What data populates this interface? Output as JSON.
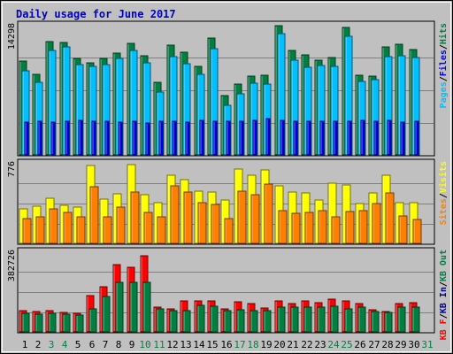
{
  "chart_data": {
    "type": "bar",
    "title": "Daily usage for June 2017",
    "categories": [
      "1",
      "2",
      "3",
      "4",
      "5",
      "6",
      "7",
      "8",
      "9",
      "10",
      "11",
      "12",
      "13",
      "14",
      "15",
      "16",
      "17",
      "18",
      "19",
      "20",
      "21",
      "22",
      "23",
      "24",
      "25",
      "26",
      "27",
      "28",
      "29",
      "30",
      "31"
    ],
    "weekend_days": [
      "3",
      "4",
      "10",
      "11",
      "17",
      "18",
      "24",
      "25",
      "31"
    ],
    "colors": {
      "background": "#c0c0c0",
      "title": "#0000c8",
      "pages": "#00c0ff",
      "files": "#0000ff",
      "hits": "#008040",
      "sites": "#ff8000",
      "visits": "#ffff00",
      "kb_in": "#0000a0",
      "kb_out": "#008040",
      "kb_f": "#ff0000",
      "weekday_label": "#000000",
      "weekend_label": "#008040"
    },
    "panels": [
      {
        "id": "hits-files-pages",
        "max_label": "14298",
        "ymax": 14298,
        "legend": [
          {
            "text": "Pages",
            "color": "#00c0ff"
          },
          {
            "text": "/",
            "color": "#000000"
          },
          {
            "text": "Files",
            "color": "#0000ff"
          },
          {
            "text": "/",
            "color": "#000000"
          },
          {
            "text": "Hits",
            "color": "#008040"
          }
        ],
        "series": [
          {
            "name": "Hits",
            "color": "#008040",
            "values": [
              10400,
              8960,
              12580,
              12460,
              10660,
              10180,
              10660,
              11300,
              12380,
              11000,
              8060,
              12140,
              11380,
              9820,
              12880,
              6520,
              7820,
              8760,
              8800,
              14298,
              11560,
              11080,
              10480,
              10760,
              14060,
              8840,
              8720,
              11920,
              12280,
              11620,
              0
            ]
          },
          {
            "name": "Files",
            "color": "#00c0ff",
            "values": [
              9260,
              8000,
              11540,
              11900,
              9960,
              9820,
              9960,
              10720,
              11540,
              10220,
              6960,
              10860,
              10040,
              8900,
              11800,
              5500,
              6720,
              7980,
              7840,
              13400,
              10460,
              9700,
              9920,
              9840,
              13160,
              8140,
              8340,
              10860,
              11000,
              10740,
              0
            ]
          },
          {
            "name": "Pages",
            "color": "#0000ff",
            "values": [
              3660,
              3760,
              3640,
              3680,
              3780,
              3680,
              3740,
              3660,
              3680,
              3560,
              3680,
              3760,
              3640,
              3780,
              3720,
              3720,
              3760,
              3800,
              4040,
              3800,
              3700,
              3720,
              3700,
              3720,
              3700,
              3800,
              3680,
              3800,
              3640,
              3760,
              0
            ]
          }
        ]
      },
      {
        "id": "visits-sites",
        "max_label": "776",
        "ymax": 776,
        "legend": [
          {
            "text": "Sites",
            "color": "#ff8000"
          },
          {
            "text": "/",
            "color": "#000000"
          },
          {
            "text": "Visits",
            "color": "#ffff00"
          }
        ],
        "series": [
          {
            "name": "Visits",
            "color": "#ffff00",
            "values": [
              340,
              360,
              440,
              370,
              350,
              761,
              430,
              482,
              768,
              470,
              400,
              660,
              625,
              512,
              497,
              420,
              727,
              666,
              714,
              560,
              497,
              491,
              420,
              589,
              566,
              389,
              491,
              666,
              400,
              400,
              0
            ]
          },
          {
            "name": "Sites",
            "color": "#ff8000",
            "values": [
              240,
              260,
              340,
              300,
              260,
              550,
              260,
              350,
              500,
              300,
              260,
              560,
              500,
              400,
              380,
              240,
              510,
              470,
              580,
              320,
              290,
              300,
              320,
              260,
              310,
              320,
              384,
              490,
              270,
              230,
              0
            ]
          }
        ]
      },
      {
        "id": "kbin-kbout-kbf",
        "max_label": "382726",
        "ymax": 382726,
        "legend": [
          {
            "text": "KB F",
            "color": "#ff0000"
          },
          {
            "text": "/",
            "color": "#000000"
          },
          {
            "text": "KB In",
            "color": "#0000a0"
          },
          {
            "text": "/",
            "color": "#000000"
          },
          {
            "text": "KB Out",
            "color": "#008040"
          }
        ],
        "series": [
          {
            "name": "KB F",
            "color": "#ff0000",
            "values": [
              102000,
              96000,
              102000,
              94000,
              90000,
              173000,
              216000,
              324000,
              312000,
              366000,
              118000,
              112000,
              150000,
              147000,
              150000,
              112000,
              146000,
              136000,
              114000,
              150000,
              135000,
              147000,
              139000,
              157000,
              147000,
              138000,
              105000,
              98000,
              137000,
              142000,
              0
            ]
          },
          {
            "name": "KB Out",
            "color": "#008040",
            "values": [
              90000,
              84000,
              88000,
              84000,
              80000,
              112000,
              172000,
              240000,
              240000,
              240000,
              110000,
              100000,
              104000,
              129000,
              122000,
              101000,
              108000,
              104000,
              100000,
              121000,
              120000,
              120000,
              117000,
              122000,
              112000,
              118000,
              97000,
              95000,
              118000,
              118000,
              0
            ]
          },
          {
            "name": "KB In",
            "color": "#0000a0",
            "values": [
              0,
              0,
              0,
              0,
              0,
              0,
              0,
              0,
              0,
              0,
              0,
              0,
              0,
              0,
              0,
              0,
              0,
              0,
              0,
              0,
              0,
              0,
              0,
              0,
              0,
              0,
              0,
              0,
              0,
              0,
              0
            ]
          }
        ]
      }
    ]
  }
}
